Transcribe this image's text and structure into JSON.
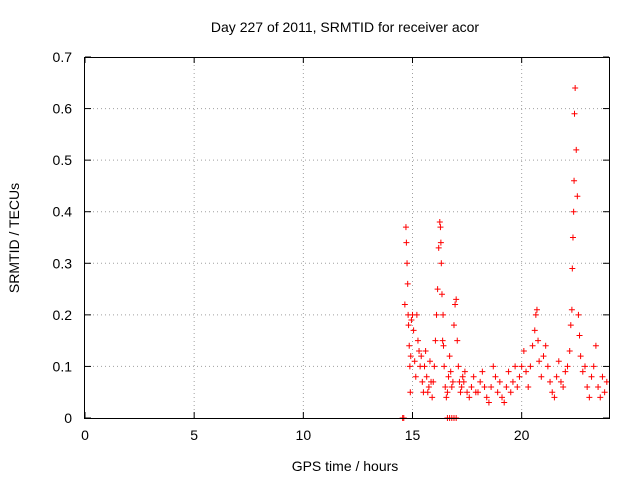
{
  "chart_data": {
    "type": "scatter",
    "title": "Day 227 of 2011, SRMTID for receiver acor",
    "xlabel": "GPS time / hours",
    "ylabel": "SRMTID / TECUs",
    "xlim": [
      0,
      24
    ],
    "ylim": [
      0,
      0.7
    ],
    "x_ticks": [
      "0",
      "5",
      "10",
      "15",
      "20"
    ],
    "y_ticks": [
      "0",
      "0.1",
      "0.2",
      "0.3",
      "0.4",
      "0.5",
      "0.6",
      "0.7"
    ],
    "grid": true,
    "legend": "none",
    "marker": "plus",
    "color": "#ff0000",
    "series": [
      {
        "x": [
          14.55,
          14.6,
          14.65,
          14.7,
          14.72,
          14.75,
          14.78,
          14.8,
          14.82,
          14.85,
          14.88,
          14.9,
          14.92,
          14.95,
          15.0,
          15.05,
          15.1,
          15.15,
          15.2,
          15.25,
          15.3,
          15.35,
          15.4,
          15.45,
          15.5,
          15.55,
          15.6,
          15.65,
          15.7,
          15.75,
          15.8,
          15.85,
          15.9,
          15.95,
          16.0,
          16.05,
          16.1,
          16.15,
          16.2,
          16.25,
          16.28,
          16.3,
          16.32,
          16.35,
          16.38,
          16.4,
          16.42,
          16.45,
          16.5,
          16.55,
          16.6,
          16.65,
          16.7,
          16.75,
          16.8,
          16.85,
          16.9,
          16.95,
          17.0,
          17.05,
          17.1,
          17.15,
          17.2,
          17.25,
          17.3,
          17.35,
          17.4,
          17.5,
          17.6,
          17.7,
          17.8,
          17.9,
          18.0,
          18.1,
          18.2,
          18.3,
          18.4,
          18.5,
          18.6,
          18.7,
          18.8,
          18.9,
          19.0,
          19.1,
          19.2,
          19.3,
          19.4,
          19.5,
          19.6,
          19.7,
          19.8,
          19.9,
          20.0,
          20.1,
          20.2,
          20.3,
          20.4,
          20.5,
          20.6,
          20.65,
          20.7,
          20.75,
          20.8,
          20.9,
          21.0,
          21.1,
          21.2,
          21.3,
          21.4,
          21.5,
          21.6,
          21.7,
          21.8,
          21.9,
          22.0,
          22.1,
          22.2,
          22.25,
          22.3,
          22.32,
          22.35,
          22.38,
          22.4,
          22.42,
          22.45,
          22.5,
          22.55,
          22.6,
          22.65,
          22.7,
          22.8,
          22.9,
          23.0,
          23.1,
          23.2,
          23.3,
          23.4,
          23.5,
          23.6,
          23.7,
          23.8,
          23.9,
          16.6,
          16.7,
          16.8,
          16.9,
          17.0
        ],
        "y": [
          0.0,
          0.0,
          0.22,
          0.37,
          0.34,
          0.3,
          0.26,
          0.2,
          0.18,
          0.14,
          0.1,
          0.05,
          0.12,
          0.19,
          0.2,
          0.17,
          0.11,
          0.08,
          0.2,
          0.15,
          0.13,
          0.1,
          0.12,
          0.07,
          0.05,
          0.1,
          0.13,
          0.08,
          0.05,
          0.06,
          0.11,
          0.07,
          0.04,
          0.07,
          0.1,
          0.15,
          0.2,
          0.25,
          0.33,
          0.38,
          0.37,
          0.34,
          0.3,
          0.24,
          0.15,
          0.2,
          0.14,
          0.1,
          0.06,
          0.04,
          0.05,
          0.08,
          0.12,
          0.09,
          0.06,
          0.07,
          0.18,
          0.22,
          0.23,
          0.15,
          0.1,
          0.07,
          0.05,
          0.06,
          0.08,
          0.07,
          0.09,
          0.05,
          0.04,
          0.06,
          0.08,
          0.05,
          0.05,
          0.07,
          0.09,
          0.06,
          0.04,
          0.03,
          0.06,
          0.1,
          0.08,
          0.05,
          0.07,
          0.04,
          0.03,
          0.06,
          0.09,
          0.05,
          0.07,
          0.1,
          0.06,
          0.08,
          0.1,
          0.13,
          0.09,
          0.06,
          0.1,
          0.14,
          0.17,
          0.2,
          0.21,
          0.15,
          0.11,
          0.08,
          0.12,
          0.14,
          0.1,
          0.07,
          0.05,
          0.04,
          0.08,
          0.11,
          0.07,
          0.06,
          0.09,
          0.1,
          0.13,
          0.18,
          0.21,
          0.29,
          0.35,
          0.4,
          0.46,
          0.59,
          0.64,
          0.52,
          0.43,
          0.2,
          0.16,
          0.12,
          0.09,
          0.1,
          0.06,
          0.04,
          0.08,
          0.1,
          0.14,
          0.06,
          0.04,
          0.08,
          0.05,
          0.07,
          0.0,
          0.0,
          0.0,
          0.0,
          0.0
        ]
      }
    ]
  }
}
